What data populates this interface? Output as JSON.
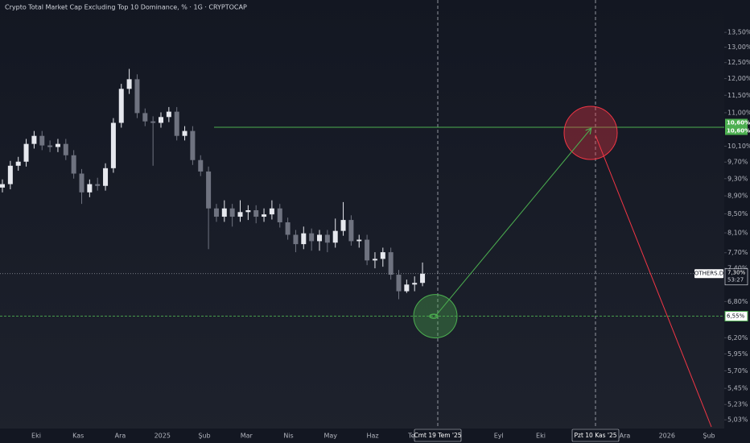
{
  "chart_data": {
    "type": "candlestick",
    "title": "Crypto Total Market Cap Excluding Top 10 Dominance, % · 1G · CRYPTOCAP",
    "scale_button": "%",
    "log_scale": true,
    "ylim": [
      4.92,
      14.66
    ],
    "yticks": [
      {
        "value": 13.5,
        "label": "13,50%"
      },
      {
        "value": 13,
        "label": "13,00%"
      },
      {
        "value": 12.5,
        "label": "12,50%"
      },
      {
        "value": 12,
        "label": "12,00%"
      },
      {
        "value": 11.5,
        "label": "11,50%"
      },
      {
        "value": 11,
        "label": "11,00%"
      },
      {
        "value": 10.1,
        "label": "10,10%"
      },
      {
        "value": 9.7,
        "label": "9,70%"
      },
      {
        "value": 9.3,
        "label": "9,30%"
      },
      {
        "value": 8.9,
        "label": "8,90%"
      },
      {
        "value": 8.5,
        "label": "8,50%"
      },
      {
        "value": 8.1,
        "label": "8,10%"
      },
      {
        "value": 7.7,
        "label": "7,70%"
      },
      {
        "value": 7.4,
        "label": "7,40%"
      },
      {
        "value": 6.8,
        "label": "6,80%"
      },
      {
        "value": 6.2,
        "label": "6,20%"
      },
      {
        "value": 5.95,
        "label": "5,95%"
      },
      {
        "value": 5.7,
        "label": "5,70%"
      },
      {
        "value": 5.45,
        "label": "5,45%"
      },
      {
        "value": 5.23,
        "label": "5,23%"
      },
      {
        "value": 5.03,
        "label": "5,03%"
      }
    ],
    "categories": [
      "Eki",
      "Kas",
      "Ara",
      "2025",
      "Şub",
      "Mar",
      "Nis",
      "May",
      "Haz",
      "Tem",
      null,
      "Eyl",
      "Eki",
      null,
      "Ara",
      "2026",
      "Şub"
    ],
    "series": [
      {
        "name": "OTHERS.D",
        "up_color": "#e6e8ee",
        "down_color": "#6f7380",
        "open": [
          9.09,
          9.17,
          9.61,
          9.71,
          10.16,
          10.37,
          10.12,
          10.08,
          10.16,
          9.87,
          9.42,
          8.98,
          9.17,
          9.13,
          9.55,
          10.72,
          11.69,
          11.98,
          10.99,
          10.76,
          10.72,
          10.88,
          11.03,
          10.37,
          10.5,
          9.75,
          9.47,
          8.62,
          8.44,
          8.62,
          8.44,
          8.54,
          8.58,
          8.44,
          8.49,
          8.62,
          8.32,
          8.06,
          7.87,
          8.09,
          7.93,
          8.06,
          7.9,
          8.14,
          8.37,
          7.93,
          7.96,
          7.55,
          7.58,
          7.71,
          7.28,
          6.98,
          7.1,
          7.13
        ],
        "high": [
          9.28,
          9.73,
          9.83,
          10.29,
          10.5,
          10.5,
          10.25,
          10.29,
          10.29,
          10.0,
          9.53,
          9.28,
          9.32,
          9.67,
          10.85,
          11.84,
          12.3,
          12.13,
          11.12,
          10.9,
          11.01,
          11.16,
          11.16,
          10.63,
          10.63,
          9.87,
          9.59,
          8.72,
          8.8,
          8.72,
          8.8,
          8.69,
          8.69,
          8.62,
          8.8,
          8.72,
          8.42,
          8.16,
          8.23,
          8.19,
          8.16,
          8.16,
          8.4,
          8.76,
          8.47,
          8.06,
          8.06,
          7.71,
          7.8,
          7.8,
          7.37,
          7.19,
          7.25,
          7.51
        ],
        "low": [
          8.98,
          9.05,
          9.49,
          9.59,
          10.04,
          10.0,
          9.95,
          9.95,
          9.75,
          9.3,
          8.72,
          8.87,
          9.02,
          9.02,
          9.44,
          10.59,
          11.54,
          10.85,
          10.63,
          9.61,
          10.59,
          10.74,
          10.25,
          10.25,
          9.63,
          9.36,
          7.77,
          8.33,
          8.33,
          8.23,
          8.33,
          8.37,
          8.3,
          8.33,
          8.38,
          8.21,
          7.96,
          7.71,
          7.77,
          7.74,
          7.74,
          7.71,
          7.8,
          8.04,
          7.84,
          7.8,
          7.46,
          7.4,
          7.43,
          7.19,
          6.84,
          6.95,
          6.98,
          7.07
        ],
        "close": [
          9.17,
          9.61,
          9.71,
          10.16,
          10.37,
          10.12,
          10.08,
          10.16,
          9.87,
          9.42,
          8.98,
          9.17,
          9.13,
          9.55,
          10.72,
          11.69,
          11.98,
          10.99,
          10.76,
          10.72,
          10.88,
          11.03,
          10.37,
          10.5,
          9.75,
          9.47,
          8.62,
          8.44,
          8.62,
          8.44,
          8.54,
          8.58,
          8.44,
          8.49,
          8.62,
          8.32,
          8.06,
          7.87,
          8.09,
          7.93,
          8.06,
          7.9,
          8.14,
          8.37,
          7.93,
          7.96,
          7.55,
          7.58,
          7.71,
          7.28,
          6.98,
          7.1,
          7.13,
          7.3
        ]
      }
    ],
    "price_label": {
      "value": 7.3,
      "label": "7,30%",
      "countdown": "53:27"
    },
    "levels": [
      {
        "value": 10.6,
        "label": "10,60%",
        "color": "#4caf50"
      },
      {
        "value": 6.55,
        "label": "6,55%",
        "color": "#4caf50"
      }
    ],
    "crosshair_labels": [
      "Cmt 19 Tem '25",
      "Pzt 10 Kas '25"
    ]
  }
}
